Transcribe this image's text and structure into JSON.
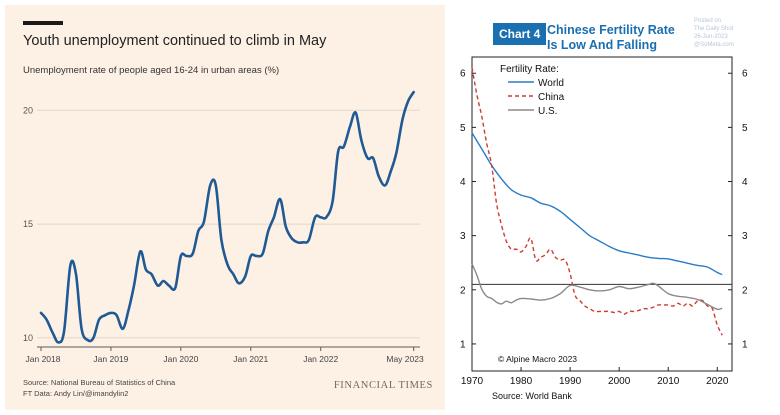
{
  "ft": {
    "title": "Youth unemployment continued to climb in May",
    "subtitle": "Unemployment rate of people aged 16-24 in urban areas (%)",
    "source_line1": "Source: National Bureau of Statistics of China",
    "source_line2": "FT Data: Andy Lin/@imandylin2",
    "logo": "FINANCIAL TIMES"
  },
  "am": {
    "badge": "Chart 4",
    "title_line1": "Chinese Fertility Rate",
    "title_line2": "Is Low And Falling",
    "watermark_line1": "Posted on",
    "watermark_line2": "The Daily Shot",
    "watermark_line3": "26-Jun-2023",
    "watermark_line4": "@SoMeta.com",
    "copyright": "© Alpine Macro 2023",
    "source": "Source: World Bank"
  },
  "chart_data": [
    {
      "type": "line",
      "title": "Youth unemployment continued to climb in May",
      "subtitle": "Unemployment rate of people aged 16-24 in urban areas (%)",
      "xlabel": "",
      "ylabel": "",
      "xlim": [
        2018.0,
        2023.42
      ],
      "ylim": [
        9.6,
        21.2
      ],
      "x_tick_labels": [
        "Jan 2018",
        "Jan 2019",
        "Jan 2020",
        "Jan 2021",
        "Jan 2022",
        "May 2023"
      ],
      "x_ticks": [
        2018.0,
        2019.0,
        2020.0,
        2021.0,
        2022.0,
        2023.33
      ],
      "y_ticks": [
        10,
        15,
        20
      ],
      "grid": true,
      "colors": {
        "line": "#1f5a95",
        "grid": "#e2d7cc",
        "background": "#fdf1e6"
      },
      "series": [
        {
          "values": [
            [
              2018.0,
              11.1
            ],
            [
              2018.08,
              10.8
            ],
            [
              2018.17,
              10.2
            ],
            [
              2018.25,
              9.8
            ],
            [
              2018.33,
              10.3
            ],
            [
              2018.42,
              13.2
            ],
            [
              2018.5,
              12.8
            ],
            [
              2018.58,
              10.4
            ],
            [
              2018.67,
              9.9
            ],
            [
              2018.75,
              10.0
            ],
            [
              2018.83,
              10.8
            ],
            [
              2018.92,
              11.0
            ],
            [
              2019.0,
              11.1
            ],
            [
              2019.08,
              11.0
            ],
            [
              2019.17,
              10.4
            ],
            [
              2019.25,
              11.2
            ],
            [
              2019.33,
              12.3
            ],
            [
              2019.42,
              13.8
            ],
            [
              2019.5,
              13.0
            ],
            [
              2019.58,
              12.8
            ],
            [
              2019.67,
              12.3
            ],
            [
              2019.75,
              12.5
            ],
            [
              2019.83,
              12.3
            ],
            [
              2019.92,
              12.2
            ],
            [
              2020.0,
              13.6
            ],
            [
              2020.08,
              13.6
            ],
            [
              2020.17,
              13.7
            ],
            [
              2020.25,
              14.7
            ],
            [
              2020.33,
              15.1
            ],
            [
              2020.42,
              16.7
            ],
            [
              2020.5,
              16.7
            ],
            [
              2020.58,
              14.3
            ],
            [
              2020.67,
              13.2
            ],
            [
              2020.75,
              12.8
            ],
            [
              2020.83,
              12.4
            ],
            [
              2020.92,
              12.7
            ],
            [
              2021.0,
              13.6
            ],
            [
              2021.08,
              13.6
            ],
            [
              2021.17,
              13.7
            ],
            [
              2021.25,
              14.7
            ],
            [
              2021.33,
              15.3
            ],
            [
              2021.42,
              16.1
            ],
            [
              2021.5,
              14.9
            ],
            [
              2021.58,
              14.4
            ],
            [
              2021.67,
              14.2
            ],
            [
              2021.75,
              14.2
            ],
            [
              2021.83,
              14.3
            ],
            [
              2021.92,
              15.3
            ],
            [
              2022.0,
              15.3
            ],
            [
              2022.08,
              15.3
            ],
            [
              2022.17,
              16.0
            ],
            [
              2022.25,
              18.2
            ],
            [
              2022.33,
              18.4
            ],
            [
              2022.42,
              19.3
            ],
            [
              2022.5,
              19.9
            ],
            [
              2022.58,
              18.7
            ],
            [
              2022.67,
              17.9
            ],
            [
              2022.75,
              17.9
            ],
            [
              2022.83,
              17.1
            ],
            [
              2022.92,
              16.7
            ],
            [
              2023.0,
              17.3
            ],
            [
              2023.08,
              18.1
            ],
            [
              2023.17,
              19.6
            ],
            [
              2023.25,
              20.4
            ],
            [
              2023.33,
              20.8
            ]
          ]
        }
      ]
    },
    {
      "type": "line",
      "title": "Chinese Fertility Rate Is Low And Falling",
      "legend_title": "Fertility Rate:",
      "legend_position": "top-left",
      "xlabel": "",
      "ylabel": "",
      "xlim": [
        1970,
        2023
      ],
      "ylim": [
        0.5,
        6.3
      ],
      "x_ticks": [
        1970,
        1980,
        1990,
        2000,
        2010,
        2020
      ],
      "y_ticks": [
        1,
        2,
        3,
        4,
        5,
        6
      ],
      "y_axis_both_sides": true,
      "grid": false,
      "reference_line": 2.1,
      "series": [
        {
          "name": "World",
          "color": "#2a7bc6",
          "style": "solid",
          "values": [
            [
              1970,
              4.9
            ],
            [
              1972,
              4.6
            ],
            [
              1974,
              4.3
            ],
            [
              1976,
              4.05
            ],
            [
              1978,
              3.85
            ],
            [
              1980,
              3.75
            ],
            [
              1982,
              3.7
            ],
            [
              1984,
              3.6
            ],
            [
              1986,
              3.55
            ],
            [
              1988,
              3.45
            ],
            [
              1990,
              3.3
            ],
            [
              1992,
              3.15
            ],
            [
              1994,
              3.0
            ],
            [
              1996,
              2.9
            ],
            [
              1998,
              2.8
            ],
            [
              2000,
              2.72
            ],
            [
              2002,
              2.68
            ],
            [
              2004,
              2.64
            ],
            [
              2006,
              2.6
            ],
            [
              2008,
              2.58
            ],
            [
              2010,
              2.57
            ],
            [
              2012,
              2.53
            ],
            [
              2014,
              2.49
            ],
            [
              2016,
              2.45
            ],
            [
              2018,
              2.42
            ],
            [
              2020,
              2.32
            ],
            [
              2021,
              2.28
            ]
          ]
        },
        {
          "name": "China",
          "color": "#d03a2f",
          "style": "dashed",
          "values": [
            [
              1970,
              6.1
            ],
            [
              1971,
              5.6
            ],
            [
              1972,
              5.2
            ],
            [
              1973,
              4.7
            ],
            [
              1974,
              4.3
            ],
            [
              1975,
              3.6
            ],
            [
              1976,
              3.2
            ],
            [
              1977,
              2.9
            ],
            [
              1978,
              2.75
            ],
            [
              1979,
              2.75
            ],
            [
              1980,
              2.7
            ],
            [
              1981,
              2.8
            ],
            [
              1982,
              2.95
            ],
            [
              1983,
              2.55
            ],
            [
              1984,
              2.6
            ],
            [
              1985,
              2.65
            ],
            [
              1986,
              2.75
            ],
            [
              1987,
              2.6
            ],
            [
              1988,
              2.55
            ],
            [
              1989,
              2.55
            ],
            [
              1990,
              2.3
            ],
            [
              1991,
              1.9
            ],
            [
              1992,
              1.8
            ],
            [
              1993,
              1.7
            ],
            [
              1994,
              1.65
            ],
            [
              1995,
              1.6
            ],
            [
              1996,
              1.6
            ],
            [
              1997,
              1.6
            ],
            [
              1998,
              1.6
            ],
            [
              1999,
              1.58
            ],
            [
              2000,
              1.6
            ],
            [
              2001,
              1.55
            ],
            [
              2002,
              1.6
            ],
            [
              2003,
              1.6
            ],
            [
              2004,
              1.62
            ],
            [
              2005,
              1.65
            ],
            [
              2006,
              1.65
            ],
            [
              2007,
              1.68
            ],
            [
              2008,
              1.72
            ],
            [
              2009,
              1.72
            ],
            [
              2010,
              1.72
            ],
            [
              2011,
              1.7
            ],
            [
              2012,
              1.75
            ],
            [
              2013,
              1.7
            ],
            [
              2014,
              1.75
            ],
            [
              2015,
              1.7
            ],
            [
              2016,
              1.8
            ],
            [
              2017,
              1.8
            ],
            [
              2018,
              1.7
            ],
            [
              2019,
              1.65
            ],
            [
              2020,
              1.35
            ],
            [
              2021,
              1.16
            ]
          ]
        },
        {
          "name": "U.S.",
          "color": "#8a8a8a",
          "style": "solid",
          "values": [
            [
              1970,
              2.48
            ],
            [
              1971,
              2.27
            ],
            [
              1972,
              2.01
            ],
            [
              1973,
              1.88
            ],
            [
              1974,
              1.84
            ],
            [
              1975,
              1.77
            ],
            [
              1976,
              1.74
            ],
            [
              1977,
              1.79
            ],
            [
              1978,
              1.76
            ],
            [
              1979,
              1.81
            ],
            [
              1980,
              1.84
            ],
            [
              1982,
              1.83
            ],
            [
              1984,
              1.81
            ],
            [
              1986,
              1.84
            ],
            [
              1988,
              1.93
            ],
            [
              1990,
              2.08
            ],
            [
              1992,
              2.05
            ],
            [
              1994,
              2.0
            ],
            [
              1996,
              1.98
            ],
            [
              1998,
              2.0
            ],
            [
              2000,
              2.06
            ],
            [
              2002,
              2.02
            ],
            [
              2004,
              2.05
            ],
            [
              2006,
              2.1
            ],
            [
              2007,
              2.12
            ],
            [
              2008,
              2.07
            ],
            [
              2010,
              1.93
            ],
            [
              2012,
              1.88
            ],
            [
              2014,
              1.86
            ],
            [
              2016,
              1.82
            ],
            [
              2018,
              1.73
            ],
            [
              2020,
              1.64
            ],
            [
              2021,
              1.66
            ]
          ]
        }
      ]
    }
  ]
}
